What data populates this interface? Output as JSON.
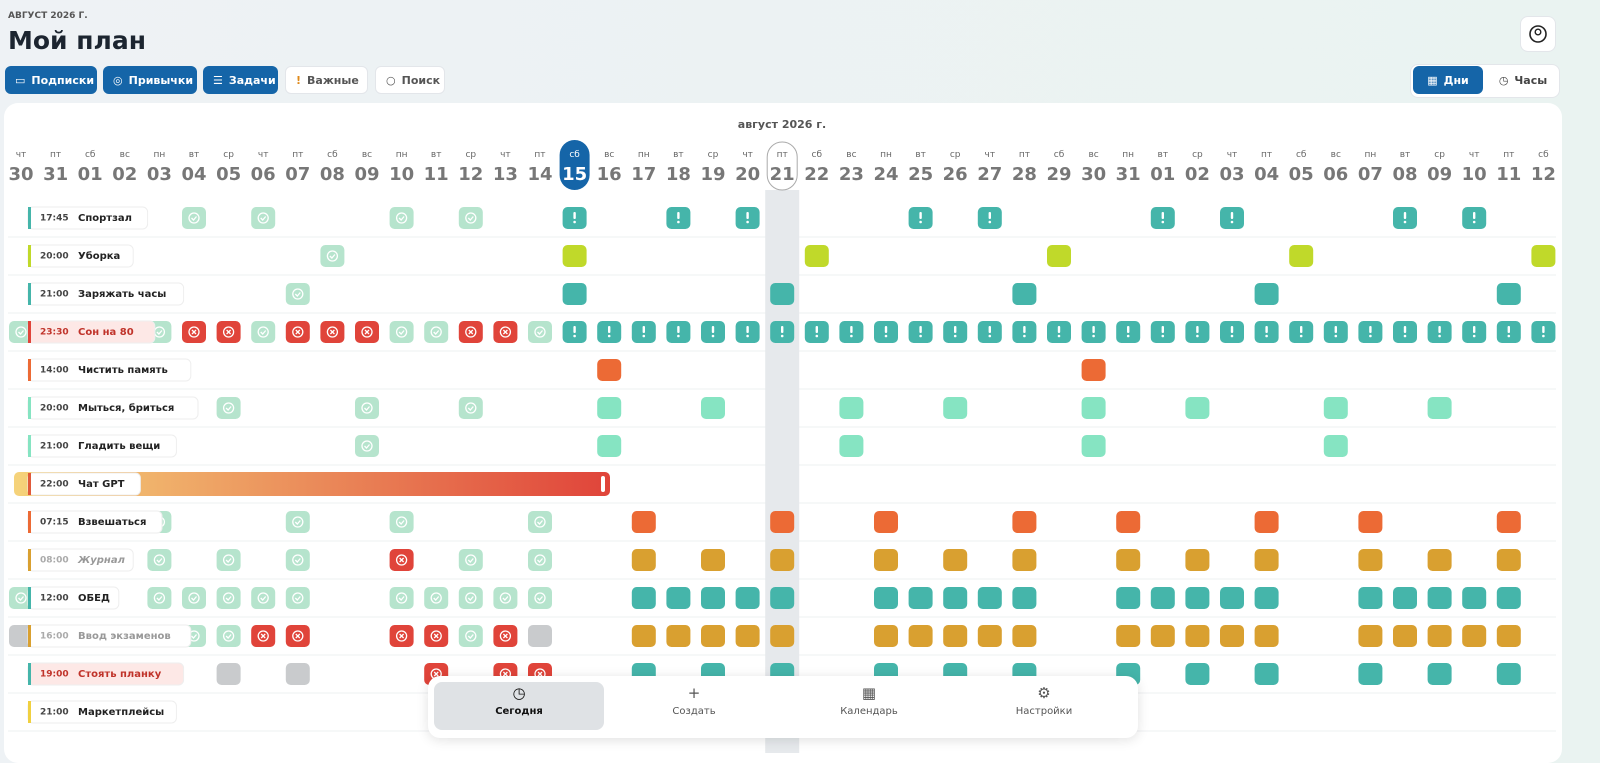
{
  "header": {
    "month_label": "АВГУСТ 2026 Г.",
    "title": "Мой план"
  },
  "toolbar": {
    "buttons": [
      "Подписки",
      "Привычки",
      "Задачи",
      "Важные",
      "Поиск"
    ],
    "view_toggle": [
      "Дни",
      "Часы"
    ]
  },
  "calendar": {
    "month_title": "август 2026 г.",
    "days": [
      {
        "weekday": "чт",
        "day": "30"
      },
      {
        "weekday": "пт",
        "day": "31"
      },
      {
        "weekday": "сб",
        "day": "01"
      },
      {
        "weekday": "вс",
        "day": "02"
      },
      {
        "weekday": "пн",
        "day": "03"
      },
      {
        "weekday": "вт",
        "day": "04"
      },
      {
        "weekday": "ср",
        "day": "05"
      },
      {
        "weekday": "чт",
        "day": "06"
      },
      {
        "weekday": "пт",
        "day": "07"
      },
      {
        "weekday": "сб",
        "day": "08"
      },
      {
        "weekday": "вс",
        "day": "09"
      },
      {
        "weekday": "пн",
        "day": "10"
      },
      {
        "weekday": "вт",
        "day": "11"
      },
      {
        "weekday": "ср",
        "day": "12"
      },
      {
        "weekday": "чт",
        "day": "13"
      },
      {
        "weekday": "пт",
        "day": "14"
      },
      {
        "weekday": "сб",
        "day": "15"
      },
      {
        "weekday": "вс",
        "day": "16"
      },
      {
        "weekday": "пн",
        "day": "17"
      },
      {
        "weekday": "вт",
        "day": "18"
      },
      {
        "weekday": "ср",
        "day": "19"
      },
      {
        "weekday": "чт",
        "day": "20"
      },
      {
        "weekday": "пт",
        "day": "21"
      },
      {
        "weekday": "сб",
        "day": "22"
      },
      {
        "weekday": "вс",
        "day": "23"
      },
      {
        "weekday": "пн",
        "day": "24"
      },
      {
        "weekday": "вт",
        "day": "25"
      },
      {
        "weekday": "ср",
        "day": "26"
      },
      {
        "weekday": "чт",
        "day": "27"
      },
      {
        "weekday": "пт",
        "day": "28"
      },
      {
        "weekday": "сб",
        "day": "29"
      },
      {
        "weekday": "вс",
        "day": "30"
      },
      {
        "weekday": "пн",
        "day": "31"
      },
      {
        "weekday": "вт",
        "day": "01"
      },
      {
        "weekday": "ср",
        "day": "02"
      },
      {
        "weekday": "чт",
        "day": "03"
      },
      {
        "weekday": "пт",
        "day": "04"
      },
      {
        "weekday": "сб",
        "day": "05"
      },
      {
        "weekday": "вс",
        "day": "06"
      },
      {
        "weekday": "пн",
        "day": "07"
      },
      {
        "weekday": "вт",
        "day": "08"
      },
      {
        "weekday": "ср",
        "day": "09"
      },
      {
        "weekday": "чт",
        "day": "10"
      },
      {
        "weekday": "пт",
        "day": "11"
      },
      {
        "weekday": "сб",
        "day": "12"
      }
    ],
    "habits": [
      {
        "time": "17:45",
        "name": "Спортзал"
      },
      {
        "time": "20:00",
        "name": "Уборка"
      },
      {
        "time": "21:00",
        "name": "Заряжать часы"
      },
      {
        "time": "23:30",
        "name": "Сон на 80"
      },
      {
        "time": "14:00",
        "name": "Чистить память"
      },
      {
        "time": "20:00",
        "name": "Мыться, бриться"
      },
      {
        "time": "21:00",
        "name": "Гладить вещи"
      },
      {
        "time": "22:00",
        "name": "Чат GPT"
      },
      {
        "time": "07:15",
        "name": "Взвешаться"
      },
      {
        "time": "08:00",
        "name": "Журнал"
      },
      {
        "time": "12:00",
        "name": "ОБЕД"
      },
      {
        "time": "16:00",
        "name": "Ввод экзаменов"
      },
      {
        "time": "19:00",
        "name": "Стоять планку"
      },
      {
        "time": "21:00",
        "name": "Маркетплейсы"
      }
    ]
  },
  "nav": [
    "Сегодня",
    "Создать",
    "Календарь",
    "Настройки"
  ]
}
